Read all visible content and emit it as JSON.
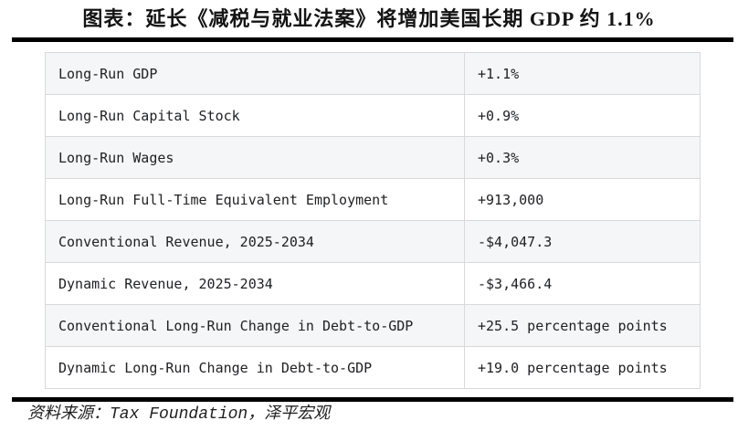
{
  "chart_data": {
    "type": "table",
    "title": "图表：延长《减税与就业法案》将增加美国长期 GDP 约 1.1%",
    "rows": [
      {
        "label": "Long-Run GDP",
        "value": "+1.1%"
      },
      {
        "label": "Long-Run Capital Stock",
        "value": "+0.9%"
      },
      {
        "label": "Long-Run Wages",
        "value": "+0.3%"
      },
      {
        "label": "Long-Run Full-Time Equivalent Employment",
        "value": "+913,000"
      },
      {
        "label": "Conventional Revenue, 2025-2034",
        "value": "-$4,047.3"
      },
      {
        "label": "Dynamic Revenue, 2025-2034",
        "value": "-$3,466.4"
      },
      {
        "label": "Conventional Long-Run Change in Debt-to-GDP",
        "value": "+25.5 percentage points"
      },
      {
        "label": "Dynamic Long-Run Change in Debt-to-GDP",
        "value": "+19.0 percentage points"
      }
    ],
    "source": "资料来源：Tax Foundation，泽平宏观",
    "layout": {
      "legend": "none",
      "grid": "table-borders",
      "row_stripe_odd": "#f5f6f7",
      "row_stripe_even": "#ffffff",
      "border_color": "#d9d9d9",
      "rule_color": "#000000",
      "text_color": "#202124"
    }
  }
}
